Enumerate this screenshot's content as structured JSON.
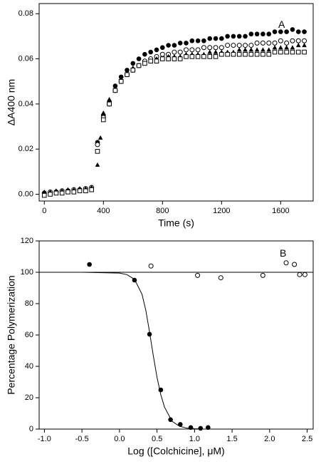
{
  "chart_data": [
    {
      "type": "scatter",
      "xlabel": "Time (s)",
      "ylabel": "ΔA400 nm",
      "annotation": "A",
      "xlim": [
        -35,
        1820
      ],
      "ylim": [
        -0.003,
        0.0845
      ],
      "xticks": [
        0,
        400,
        800,
        1200,
        1600
      ],
      "yticks": [
        {
          "value": 0,
          "label": "0.00"
        },
        0.02,
        0.04,
        0.06,
        0.08
      ],
      "series": [
        {
          "marker": "filled-circle",
          "color": "#000000",
          "x": [
            0,
            40,
            80,
            120,
            160,
            200,
            240,
            280,
            320,
            360,
            400,
            440,
            480,
            520,
            560,
            600,
            640,
            680,
            720,
            760,
            800,
            840,
            880,
            920,
            960,
            1000,
            1040,
            1080,
            1120,
            1160,
            1200,
            1240,
            1280,
            1320,
            1360,
            1400,
            1440,
            1480,
            1520,
            1560,
            1600,
            1640,
            1680,
            1720,
            1760
          ],
          "values": [
            0.0,
            0.0005,
            0.001,
            0.001,
            0.0015,
            0.0015,
            0.002,
            0.002,
            0.0025,
            0.023,
            0.035,
            0.041,
            0.048,
            0.052,
            0.055,
            0.058,
            0.06,
            0.062,
            0.063,
            0.064,
            0.065,
            0.066,
            0.066,
            0.067,
            0.067,
            0.068,
            0.068,
            0.068,
            0.069,
            0.069,
            0.069,
            0.07,
            0.07,
            0.07,
            0.07,
            0.071,
            0.071,
            0.071,
            0.071,
            0.072,
            0.072,
            0.072,
            0.073,
            0.072,
            0.072
          ]
        },
        {
          "marker": "open-circle",
          "color": "#000000",
          "x": [
            0,
            40,
            80,
            120,
            160,
            200,
            240,
            280,
            320,
            360,
            400,
            440,
            480,
            520,
            560,
            600,
            640,
            680,
            720,
            760,
            800,
            840,
            880,
            920,
            960,
            1000,
            1040,
            1080,
            1120,
            1160,
            1200,
            1240,
            1280,
            1320,
            1360,
            1400,
            1440,
            1480,
            1520,
            1560,
            1600,
            1640,
            1680,
            1720,
            1760
          ],
          "values": [
            0.0005,
            0.001,
            0.001,
            0.0015,
            0.0015,
            0.002,
            0.002,
            0.0025,
            0.003,
            0.022,
            0.034,
            0.04,
            0.046,
            0.05,
            0.053,
            0.055,
            0.057,
            0.059,
            0.06,
            0.061,
            0.062,
            0.062,
            0.063,
            0.063,
            0.064,
            0.064,
            0.064,
            0.065,
            0.065,
            0.065,
            0.065,
            0.066,
            0.066,
            0.066,
            0.066,
            0.066,
            0.067,
            0.067,
            0.067,
            0.067,
            0.068,
            0.067,
            0.068,
            0.068,
            0.068
          ]
        },
        {
          "marker": "filled-triangle",
          "color": "#000000",
          "x": [
            0,
            40,
            80,
            120,
            160,
            200,
            240,
            280,
            320,
            360,
            380,
            400,
            440,
            480,
            520,
            560,
            600,
            640,
            680,
            720,
            760,
            800,
            840,
            880,
            920,
            960,
            1000,
            1040,
            1080,
            1120,
            1160,
            1200,
            1240,
            1280,
            1320,
            1360,
            1400,
            1440,
            1480,
            1520,
            1560,
            1600,
            1640,
            1680,
            1720,
            1760
          ],
          "values": [
            0.001,
            0.001,
            0.0015,
            0.0015,
            0.002,
            0.002,
            0.0025,
            0.0025,
            0.003,
            0.013,
            0.025,
            0.036,
            0.042,
            0.047,
            0.051,
            0.054,
            0.056,
            0.057,
            0.058,
            0.059,
            0.06,
            0.06,
            0.061,
            0.061,
            0.061,
            0.062,
            0.062,
            0.062,
            0.062,
            0.063,
            0.063,
            0.063,
            0.063,
            0.063,
            0.064,
            0.064,
            0.064,
            0.064,
            0.064,
            0.064,
            0.065,
            0.065,
            0.065,
            0.065,
            0.066,
            0.066
          ]
        },
        {
          "marker": "open-square",
          "color": "#000000",
          "x": [
            0,
            40,
            80,
            120,
            160,
            200,
            240,
            280,
            320,
            360,
            400,
            440,
            480,
            520,
            560,
            600,
            640,
            680,
            720,
            760,
            800,
            840,
            880,
            920,
            960,
            1000,
            1040,
            1080,
            1120,
            1160,
            1200,
            1240,
            1280,
            1320,
            1360,
            1400,
            1440,
            1480,
            1520,
            1560,
            1600,
            1640,
            1680,
            1720,
            1760
          ],
          "values": [
            -0.0005,
            0.0,
            0.0005,
            0.0005,
            0.001,
            0.001,
            0.0015,
            0.0015,
            0.002,
            0.019,
            0.033,
            0.04,
            0.046,
            0.05,
            0.053,
            0.055,
            0.057,
            0.058,
            0.059,
            0.059,
            0.06,
            0.06,
            0.06,
            0.06,
            0.061,
            0.061,
            0.061,
            0.061,
            0.061,
            0.061,
            0.062,
            0.062,
            0.062,
            0.062,
            0.062,
            0.062,
            0.062,
            0.062,
            0.062,
            0.063,
            0.063,
            0.063,
            0.063,
            0.063,
            0.063
          ]
        }
      ]
    },
    {
      "type": "scatter",
      "xlabel": "Log ([Colchicine], μM)",
      "ylabel": "Percentage Polymerization",
      "annotation": "B",
      "xlim": [
        -1.07,
        2.58
      ],
      "ylim": [
        0,
        120
      ],
      "xticks": [
        {
          "value": -1,
          "label": "-1.0"
        },
        -0.5,
        {
          "value": 0,
          "label": "0.0"
        },
        0.5,
        {
          "value": 1,
          "label": "1.0"
        },
        1.5,
        {
          "value": 2,
          "label": "2.0"
        },
        2.5
      ],
      "yticks": [
        0,
        20,
        40,
        60,
        80,
        100,
        120
      ],
      "series": [
        {
          "marker": "line",
          "color": "#000000",
          "x": [
            -1.07,
            -0.5,
            0,
            0.1,
            0.2,
            0.3,
            0.35,
            0.4,
            0.45,
            0.5,
            0.55,
            0.6,
            0.7,
            0.8,
            0.9,
            1.0,
            1.1
          ],
          "values": [
            100,
            100,
            99.5,
            98.5,
            95.5,
            86,
            76,
            62,
            47,
            33,
            22,
            14,
            5,
            1.8,
            0.6,
            0.2,
            0.1
          ]
        },
        {
          "marker": "line",
          "color": "#000000",
          "x": [
            -1.07,
            2.58
          ],
          "values": [
            100,
            100
          ]
        },
        {
          "marker": "filled-circle",
          "color": "#000000",
          "x": [
            -0.4,
            0.2,
            0.4,
            0.55,
            0.68,
            0.81,
            0.95,
            1.08,
            1.18
          ],
          "values": [
            105,
            95,
            60.5,
            25,
            6,
            3,
            1,
            0.5,
            1
          ]
        },
        {
          "marker": "open-circle",
          "color": "#000000",
          "x": [
            0.42,
            1.04,
            1.35,
            1.91,
            2.22,
            2.33,
            2.4,
            2.47
          ],
          "values": [
            104,
            98,
            96.5,
            98,
            106,
            105,
            98.5,
            98.5
          ]
        }
      ]
    }
  ]
}
